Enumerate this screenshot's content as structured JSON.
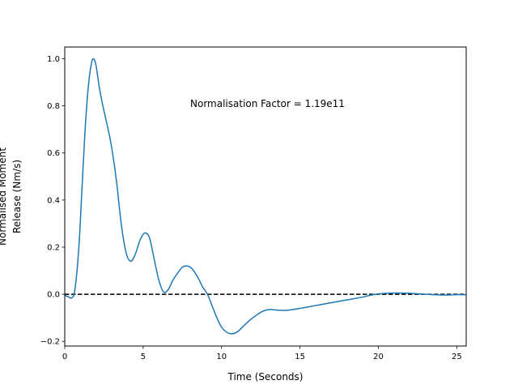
{
  "chart_data": {
    "type": "line",
    "title": "",
    "xlabel": "Time (Seconds)",
    "ylabel_lines": [
      "Normalised Moment",
      "Release (Nm/s)"
    ],
    "xlim": [
      0,
      25.6
    ],
    "ylim": [
      -0.22,
      1.05
    ],
    "xticks": [
      0,
      5,
      10,
      15,
      20,
      25
    ],
    "xtick_labels": [
      "0",
      "5",
      "10",
      "15",
      "20",
      "25"
    ],
    "yticks": [
      -0.2,
      0.0,
      0.2,
      0.4,
      0.6,
      0.8,
      1.0
    ],
    "ytick_labels": [
      "−0.2",
      "0.0",
      "0.2",
      "0.4",
      "0.6",
      "0.8",
      "1.0"
    ],
    "grid": false,
    "annotation": "Normalisation Factor = 1.19e11",
    "colors": {
      "series": "#1f77b4",
      "zero_line": "#000000"
    },
    "zero_line": {
      "y": 0,
      "style": "dashed"
    },
    "series": [
      {
        "x": [
          0,
          0.2,
          0.45,
          0.65,
          0.9,
          1.1,
          1.3,
          1.5,
          1.7,
          1.85,
          2.0,
          2.2,
          2.4,
          2.6,
          2.8,
          3.0,
          3.3,
          3.6,
          3.9,
          4.2,
          4.5,
          4.8,
          5.1,
          5.4,
          5.7,
          6.0,
          6.3,
          6.6,
          6.9,
          7.2,
          7.5,
          7.8,
          8.1,
          8.5,
          8.8,
          9.1,
          9.4,
          9.7,
          10.0,
          10.3,
          10.6,
          11.0,
          11.4,
          11.8,
          12.2,
          12.6,
          13.0,
          13.3,
          13.7,
          14.2,
          15.0,
          16.0,
          17.0,
          18.0,
          19.0,
          19.5,
          20.0,
          20.5,
          21.0,
          21.5,
          22.0,
          22.5,
          23.0,
          23.5,
          24.0,
          24.5,
          25.0,
          25.6
        ],
        "y": [
          -0.005,
          -0.01,
          -0.015,
          0.02,
          0.2,
          0.45,
          0.7,
          0.88,
          0.98,
          1.0,
          0.97,
          0.88,
          0.81,
          0.75,
          0.69,
          0.62,
          0.48,
          0.3,
          0.18,
          0.14,
          0.17,
          0.23,
          0.26,
          0.24,
          0.15,
          0.06,
          0.01,
          0.02,
          0.06,
          0.09,
          0.115,
          0.12,
          0.11,
          0.07,
          0.03,
          0.0,
          -0.05,
          -0.1,
          -0.14,
          -0.16,
          -0.168,
          -0.16,
          -0.135,
          -0.11,
          -0.09,
          -0.073,
          -0.065,
          -0.066,
          -0.068,
          -0.068,
          -0.06,
          -0.048,
          -0.036,
          -0.024,
          -0.012,
          -0.004,
          0.001,
          0.004,
          0.005,
          0.005,
          0.004,
          0.002,
          0.0,
          -0.002,
          -0.003,
          -0.003,
          -0.002,
          -0.002
        ]
      }
    ]
  }
}
